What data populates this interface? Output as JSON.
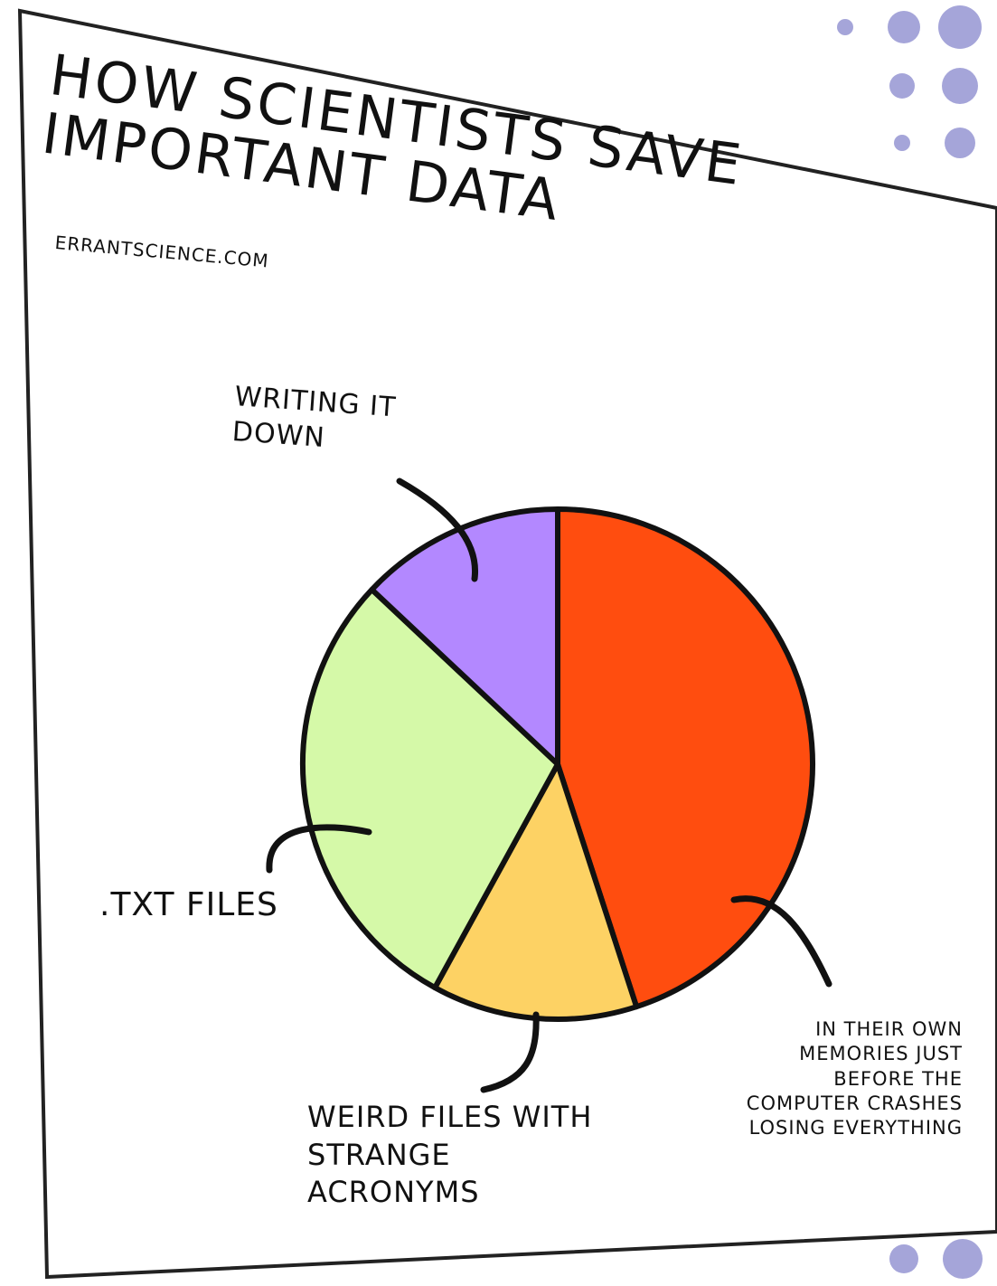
{
  "chart_data": {
    "type": "pie",
    "title": "HOW SCIENTISTS SAVE IMPORTANT DATA",
    "subtitle": "ERRANTSCIENCE.COM",
    "categories": [
      "IN THEIR OWN MEMORIES JUST BEFORE THE COMPUTER CRASHES LOSING EVERYTHING",
      "WEIRD FILES WITH STRANGE ACRONYMS",
      ".TXT FILES",
      "WRITING IT DOWN"
    ],
    "values": [
      45,
      13,
      29,
      13
    ],
    "colors": [
      "#ff4d0f",
      "#fdd264",
      "#d5f9a8",
      "#b388ff"
    ]
  }
}
